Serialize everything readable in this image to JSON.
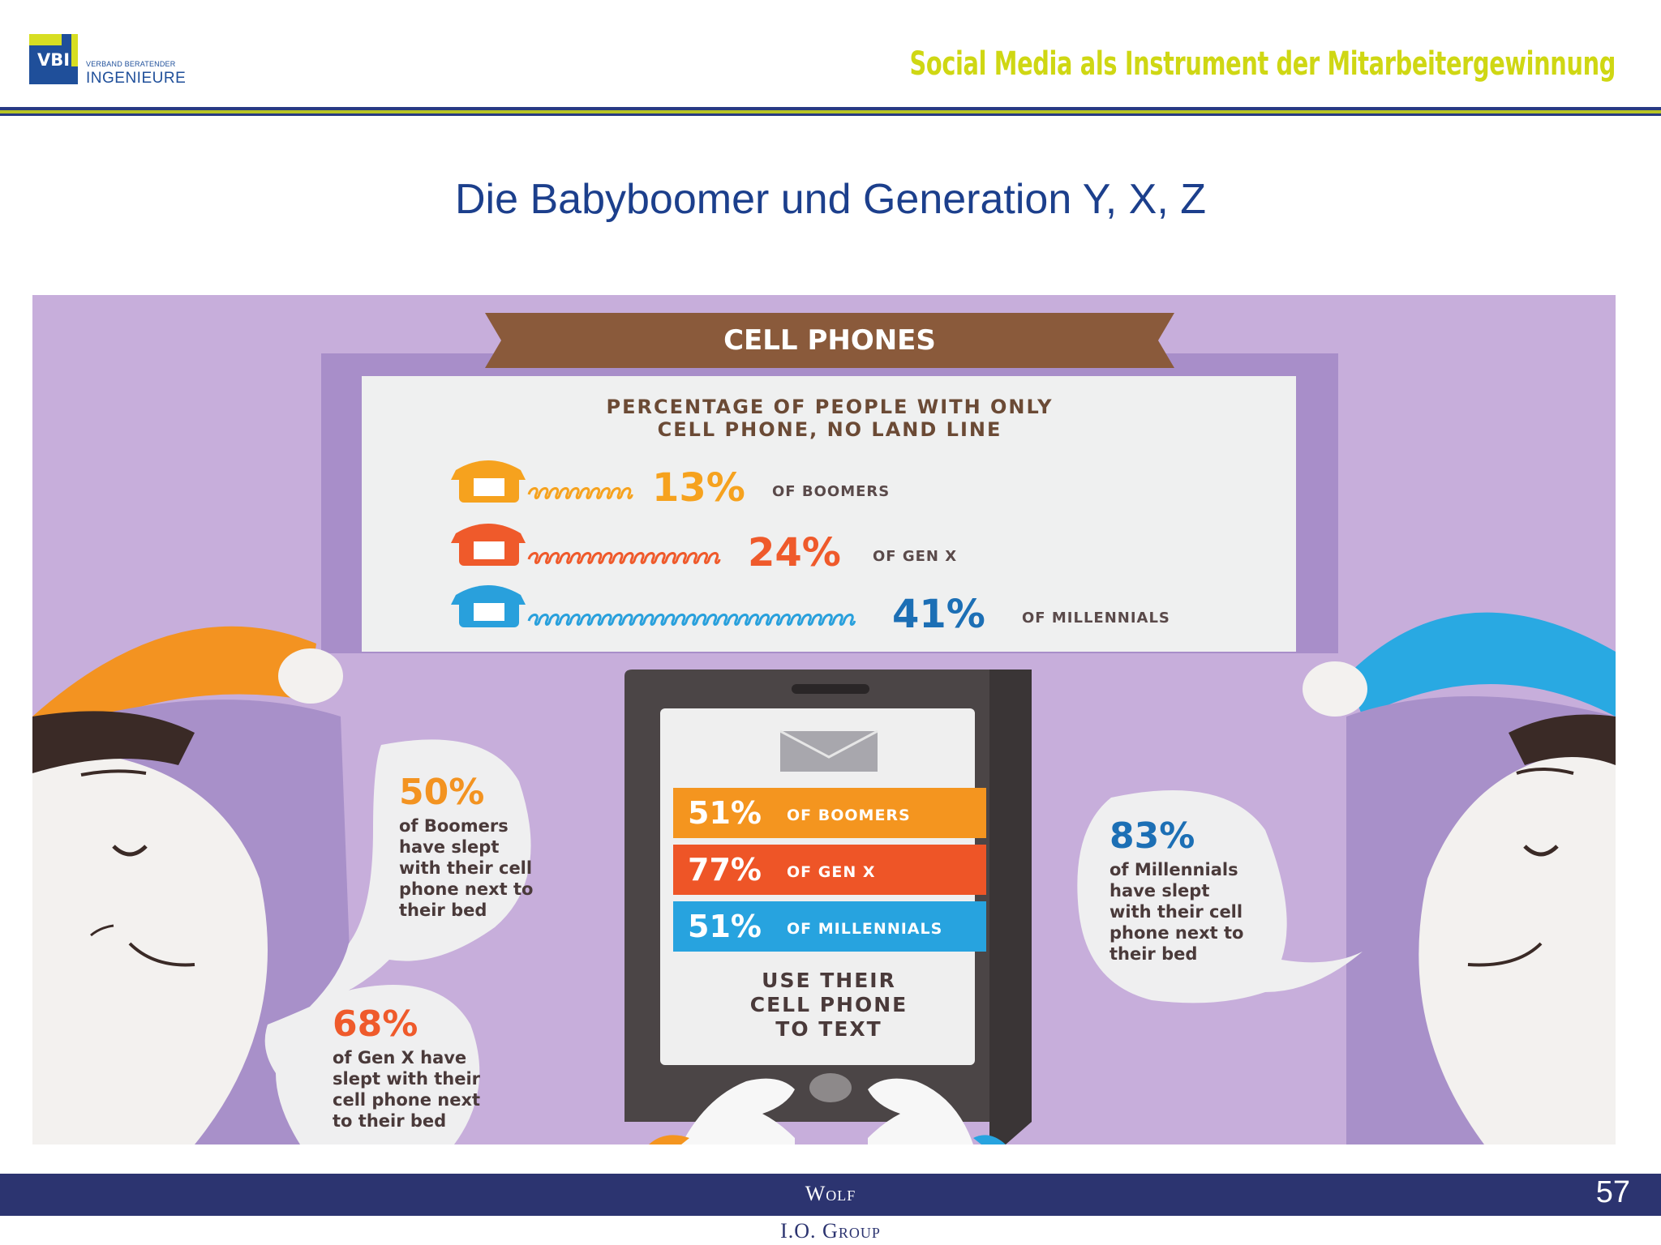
{
  "header": {
    "logo_mark": "VBI",
    "logo_small": "VERBAND BERATENDER",
    "logo_big": "INGENIEURE",
    "title": "Social Media als Instrument der Mitarbeitergewinnung"
  },
  "slide_title": "Die Babyboomer und Generation Y, X, Z",
  "infographic": {
    "banner": "CELL PHONES",
    "panel_heading_1": "PERCENTAGE OF PEOPLE WITH ONLY",
    "panel_heading_2": "CELL PHONE, NO LAND LINE",
    "rows": [
      {
        "pct": "13%",
        "label": "OF BOOMERS",
        "value": 13,
        "color": "#f6a21e"
      },
      {
        "pct": "24%",
        "label": "OF GEN X",
        "value": 24,
        "color": "#ef5a2b"
      },
      {
        "pct": "41%",
        "label": "OF MILLENNIALS",
        "value": 41,
        "color": "#29a0dc"
      }
    ],
    "phone_bars": [
      {
        "pct": "51%",
        "label": "OF BOOMERS",
        "color": "#f4951f"
      },
      {
        "pct": "77%",
        "label": "OF GEN X",
        "color": "#ee5527"
      },
      {
        "pct": "51%",
        "label": "OF MILLENNIALS",
        "color": "#27a3df"
      }
    ],
    "phone_caption": [
      "USE THEIR",
      "CELL PHONE",
      "TO TEXT"
    ],
    "bubbles": {
      "boomers": {
        "pct": "50%",
        "lines": [
          "of Boomers",
          "have slept",
          "with their cell",
          "phone next to",
          "their bed"
        ]
      },
      "genx": {
        "pct": "68%",
        "lines": [
          "of Gen X have",
          "slept with their",
          "cell phone next",
          "to their bed"
        ]
      },
      "millennials": {
        "pct": "83%",
        "lines": [
          "of Millennials",
          "have slept",
          "with their cell",
          "phone next to",
          "their bed"
        ]
      }
    }
  },
  "footer": {
    "line1": "Wolf",
    "line2": "I.O. Group",
    "page_number": "57"
  },
  "colors": {
    "brand_blue": "#1f4f9a",
    "accent_green": "#cfd713",
    "purple_bg": "#c7aedb",
    "brown_banner": "#8a5a3b",
    "footer_navy": "#2c3470"
  }
}
